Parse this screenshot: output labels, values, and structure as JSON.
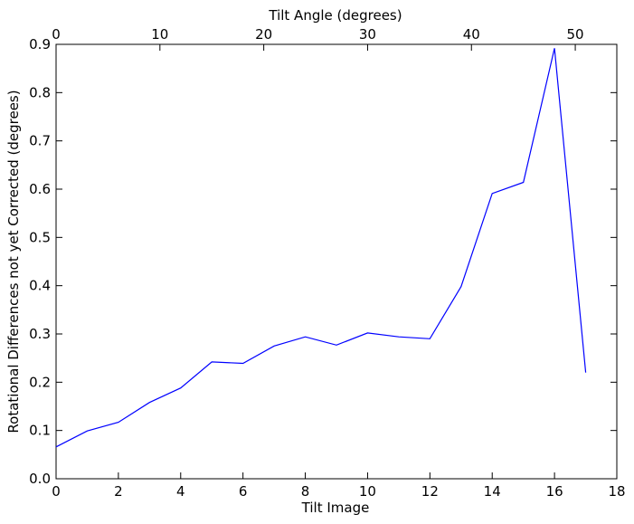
{
  "chart_data": {
    "type": "line",
    "xlabel": "Tilt Image",
    "ylabel": "Rotational Differences not yet Corrected (degrees)",
    "top_xlabel": "Tilt Angle (degrees)",
    "xlim": [
      0,
      18
    ],
    "ylim": [
      0,
      0.9
    ],
    "top_xlim": [
      0,
      54
    ],
    "x_ticks": [
      0,
      2,
      4,
      6,
      8,
      10,
      12,
      14,
      16,
      18
    ],
    "x_tick_labels": [
      "0",
      "2",
      "4",
      "6",
      "8",
      "10",
      "12",
      "14",
      "16",
      "18"
    ],
    "y_ticks": [
      0.0,
      0.1,
      0.2,
      0.3,
      0.4,
      0.5,
      0.6,
      0.7,
      0.8,
      0.9
    ],
    "y_tick_labels": [
      "0.0",
      "0.1",
      "0.2",
      "0.3",
      "0.4",
      "0.5",
      "0.6",
      "0.7",
      "0.8",
      "0.9"
    ],
    "top_x_ticks": [
      0,
      10,
      20,
      30,
      40,
      50
    ],
    "top_x_tick_labels": [
      "0",
      "10",
      "20",
      "30",
      "40",
      "50"
    ],
    "grid": false,
    "series": [
      {
        "color": "#0000ff",
        "x": [
          0,
          1,
          2,
          3,
          4,
          5,
          6,
          7,
          8,
          9,
          10,
          11,
          12,
          13,
          14,
          15,
          16,
          17
        ],
        "y": [
          0.066,
          0.099,
          0.117,
          0.158,
          0.188,
          0.242,
          0.239,
          0.275,
          0.294,
          0.277,
          0.302,
          0.294,
          0.29,
          0.398,
          0.591,
          0.614,
          0.892,
          0.22
        ]
      }
    ]
  }
}
